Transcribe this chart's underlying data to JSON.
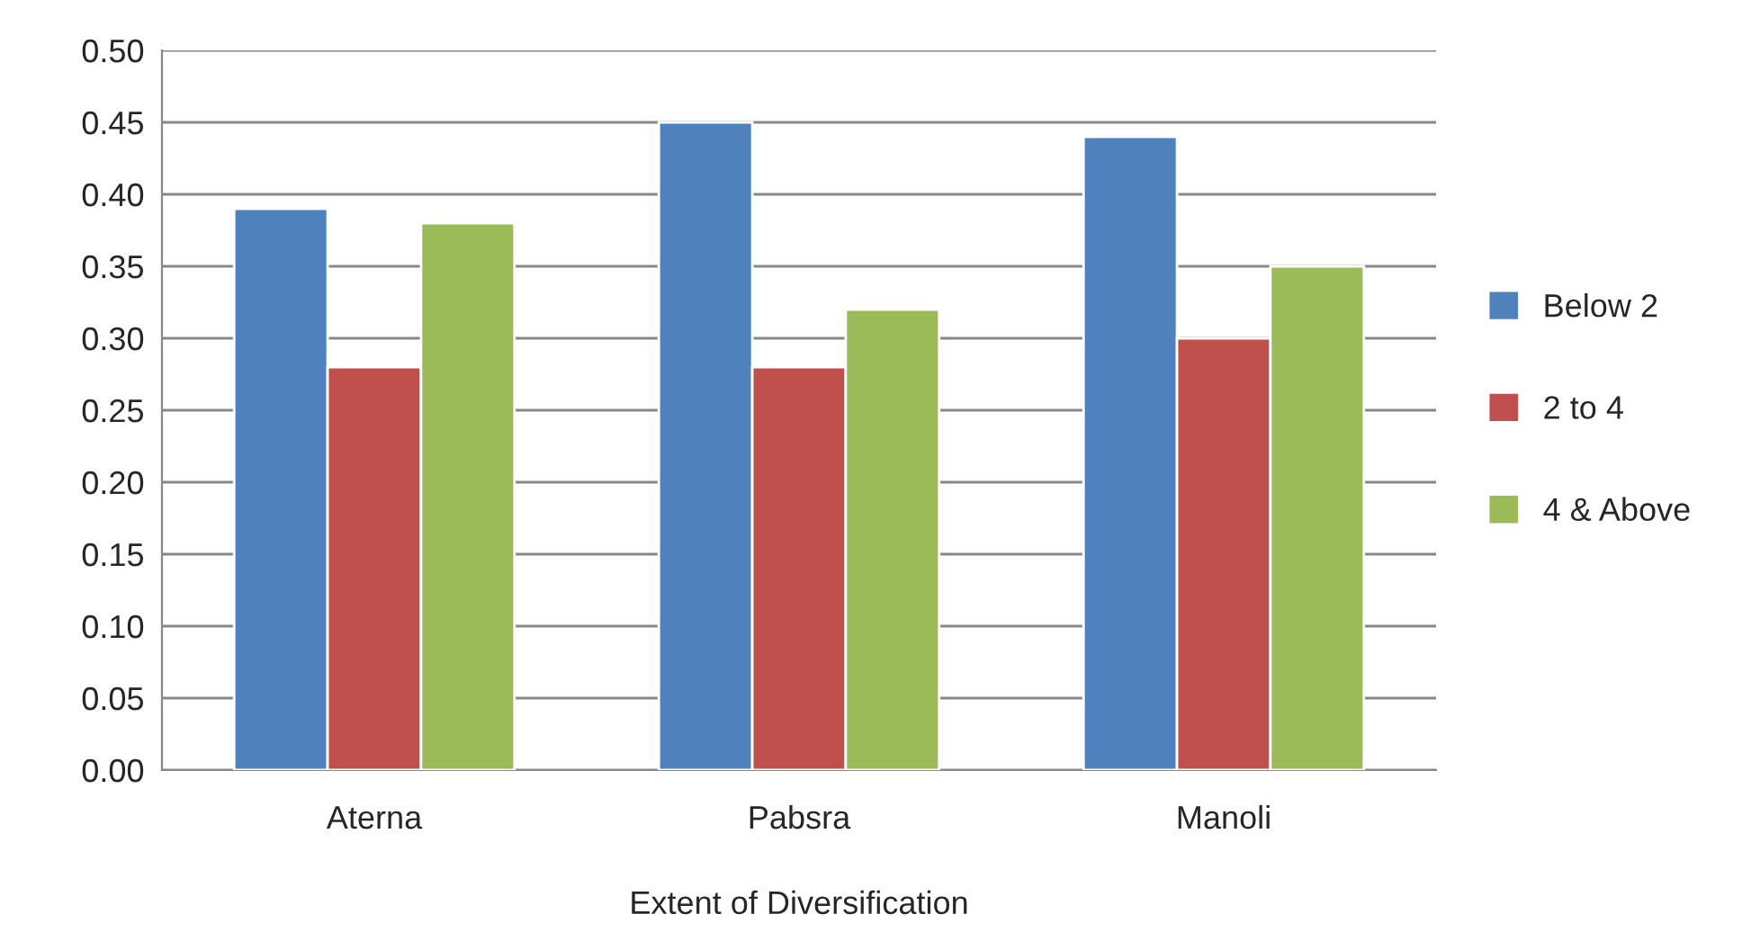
{
  "chart_data": {
    "type": "bar",
    "categories": [
      "Aterna",
      "Pabsra",
      "Manoli"
    ],
    "xlabel": "Extent of Diversification",
    "series": [
      {
        "name": "Below 2",
        "color": "#4f81bd",
        "values": [
          0.39,
          0.45,
          0.44
        ]
      },
      {
        "name": "2 to 4",
        "color": "#c0504d",
        "values": [
          0.28,
          0.28,
          0.3
        ]
      },
      {
        "name": "4 & Above",
        "color": "#9bbb59",
        "values": [
          0.38,
          0.32,
          0.35
        ]
      }
    ],
    "ylim": [
      0,
      0.5
    ],
    "yticks": [
      {
        "value": 0,
        "label": "0.00"
      },
      {
        "value": 0.05,
        "label": "0.05"
      },
      {
        "value": 0.1,
        "label": "0.10"
      },
      {
        "value": 0.15,
        "label": "0.15"
      },
      {
        "value": 0.2,
        "label": "0.20"
      },
      {
        "value": 0.25,
        "label": "0.25"
      },
      {
        "value": 0.3,
        "label": "0.30"
      },
      {
        "value": 0.35,
        "label": "0.35"
      },
      {
        "value": 0.4,
        "label": "0.40"
      },
      {
        "value": 0.45,
        "label": "0.45"
      },
      {
        "value": 0.5,
        "label": "0.50"
      }
    ],
    "grid": "y",
    "legend": "right"
  }
}
